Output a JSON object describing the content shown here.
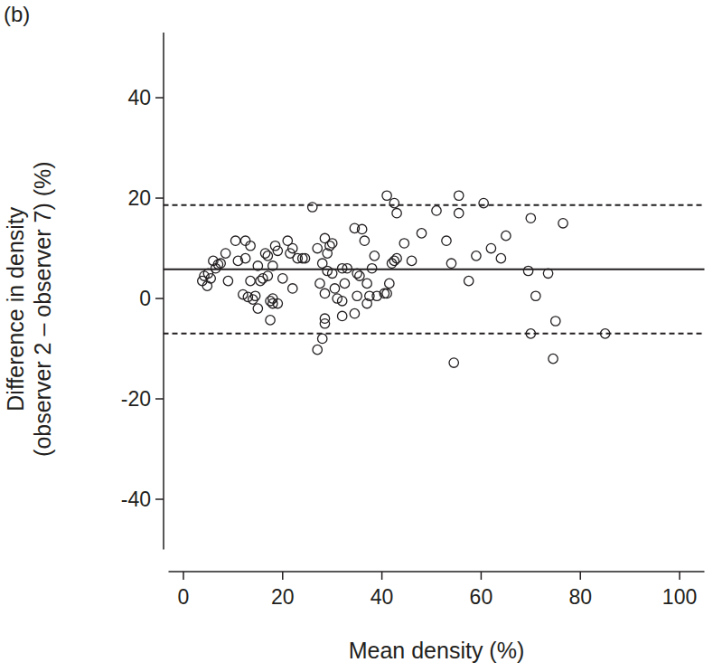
{
  "chart_data": {
    "type": "scatter",
    "title": "(b)",
    "xlabel": "Mean density (%)",
    "ylabel": [
      "Difference in density",
      "(observer 2 – observer 7) (%)"
    ],
    "xlim": [
      -3,
      105
    ],
    "ylim": [
      -50,
      53
    ],
    "xticks": [
      0,
      20,
      40,
      60,
      80,
      100
    ],
    "yticks": [
      -40,
      -20,
      0,
      20,
      40
    ],
    "marker": "open_circle",
    "color": "#231f20",
    "reference_lines": [
      {
        "value": 5.8,
        "line_style": "solid"
      },
      {
        "value": 18.6,
        "line_style": "dashed"
      },
      {
        "value": -7.0,
        "line_style": "dashed"
      }
    ],
    "x": [
      3.8,
      4.2,
      4.8,
      5,
      5.5,
      6,
      6.5,
      7,
      7.5,
      8.5,
      9,
      10.5,
      11,
      12,
      12.5,
      12.5,
      13,
      13.5,
      13.5,
      14,
      14.5,
      15,
      15,
      15.5,
      16,
      16.5,
      17,
      17,
      17.5,
      17.5,
      18,
      18,
      18,
      18.5,
      19,
      19,
      20,
      21,
      21.5,
      22,
      22,
      23,
      24,
      24.5,
      26,
      27,
      27,
      27.5,
      28,
      28,
      28.5,
      28.5,
      28.5,
      28.5,
      29,
      29,
      29.5,
      30,
      30,
      30.5,
      31,
      32,
      32,
      32,
      32.5,
      33,
      34.5,
      34.5,
      35,
      35,
      35.5,
      36,
      36.5,
      37,
      37,
      37.5,
      38,
      38.5,
      39,
      40.5,
      41,
      41,
      41.5,
      42,
      42.5,
      42.5,
      43,
      43,
      44.5,
      46,
      48,
      51,
      53,
      54,
      54.5,
      55.5,
      55.5,
      57.5,
      59,
      60.5,
      62,
      64,
      65,
      69.5,
      70,
      70,
      71,
      73.5,
      74.5,
      75,
      76.5,
      85
    ],
    "values": [
      3.5,
      4.5,
      2.5,
      5,
      4,
      7.5,
      6,
      6.8,
      7,
      9,
      3.5,
      11.5,
      7.5,
      0.8,
      11.5,
      8,
      0.3,
      10.5,
      3.5,
      -0.2,
      0.5,
      -2,
      6.5,
      3.5,
      4,
      9,
      4.5,
      8.5,
      -4.3,
      -0.5,
      -1,
      0,
      6.5,
      10.5,
      9.5,
      -1,
      4,
      11.5,
      9,
      2,
      10,
      8,
      8,
      8,
      18.2,
      -10.2,
      10,
      3,
      -8,
      7,
      12,
      1,
      -4,
      -5,
      5.5,
      9,
      10.5,
      11,
      5,
      2,
      0,
      6,
      -3.5,
      -0.5,
      3,
      6,
      14,
      -3,
      0.5,
      5,
      4.5,
      13.8,
      11.5,
      3,
      -1,
      0.5,
      6,
      8.5,
      0.5,
      1,
      20.5,
      1,
      3,
      7,
      19,
      7.5,
      17,
      8,
      11,
      7.5,
      13,
      17.5,
      11.5,
      7,
      -12.8,
      20.5,
      17,
      3.5,
      8.5,
      19,
      10,
      8,
      12.5,
      5.5,
      -7,
      16,
      0.5,
      5,
      -12,
      -4.5,
      15,
      -7
    ]
  }
}
